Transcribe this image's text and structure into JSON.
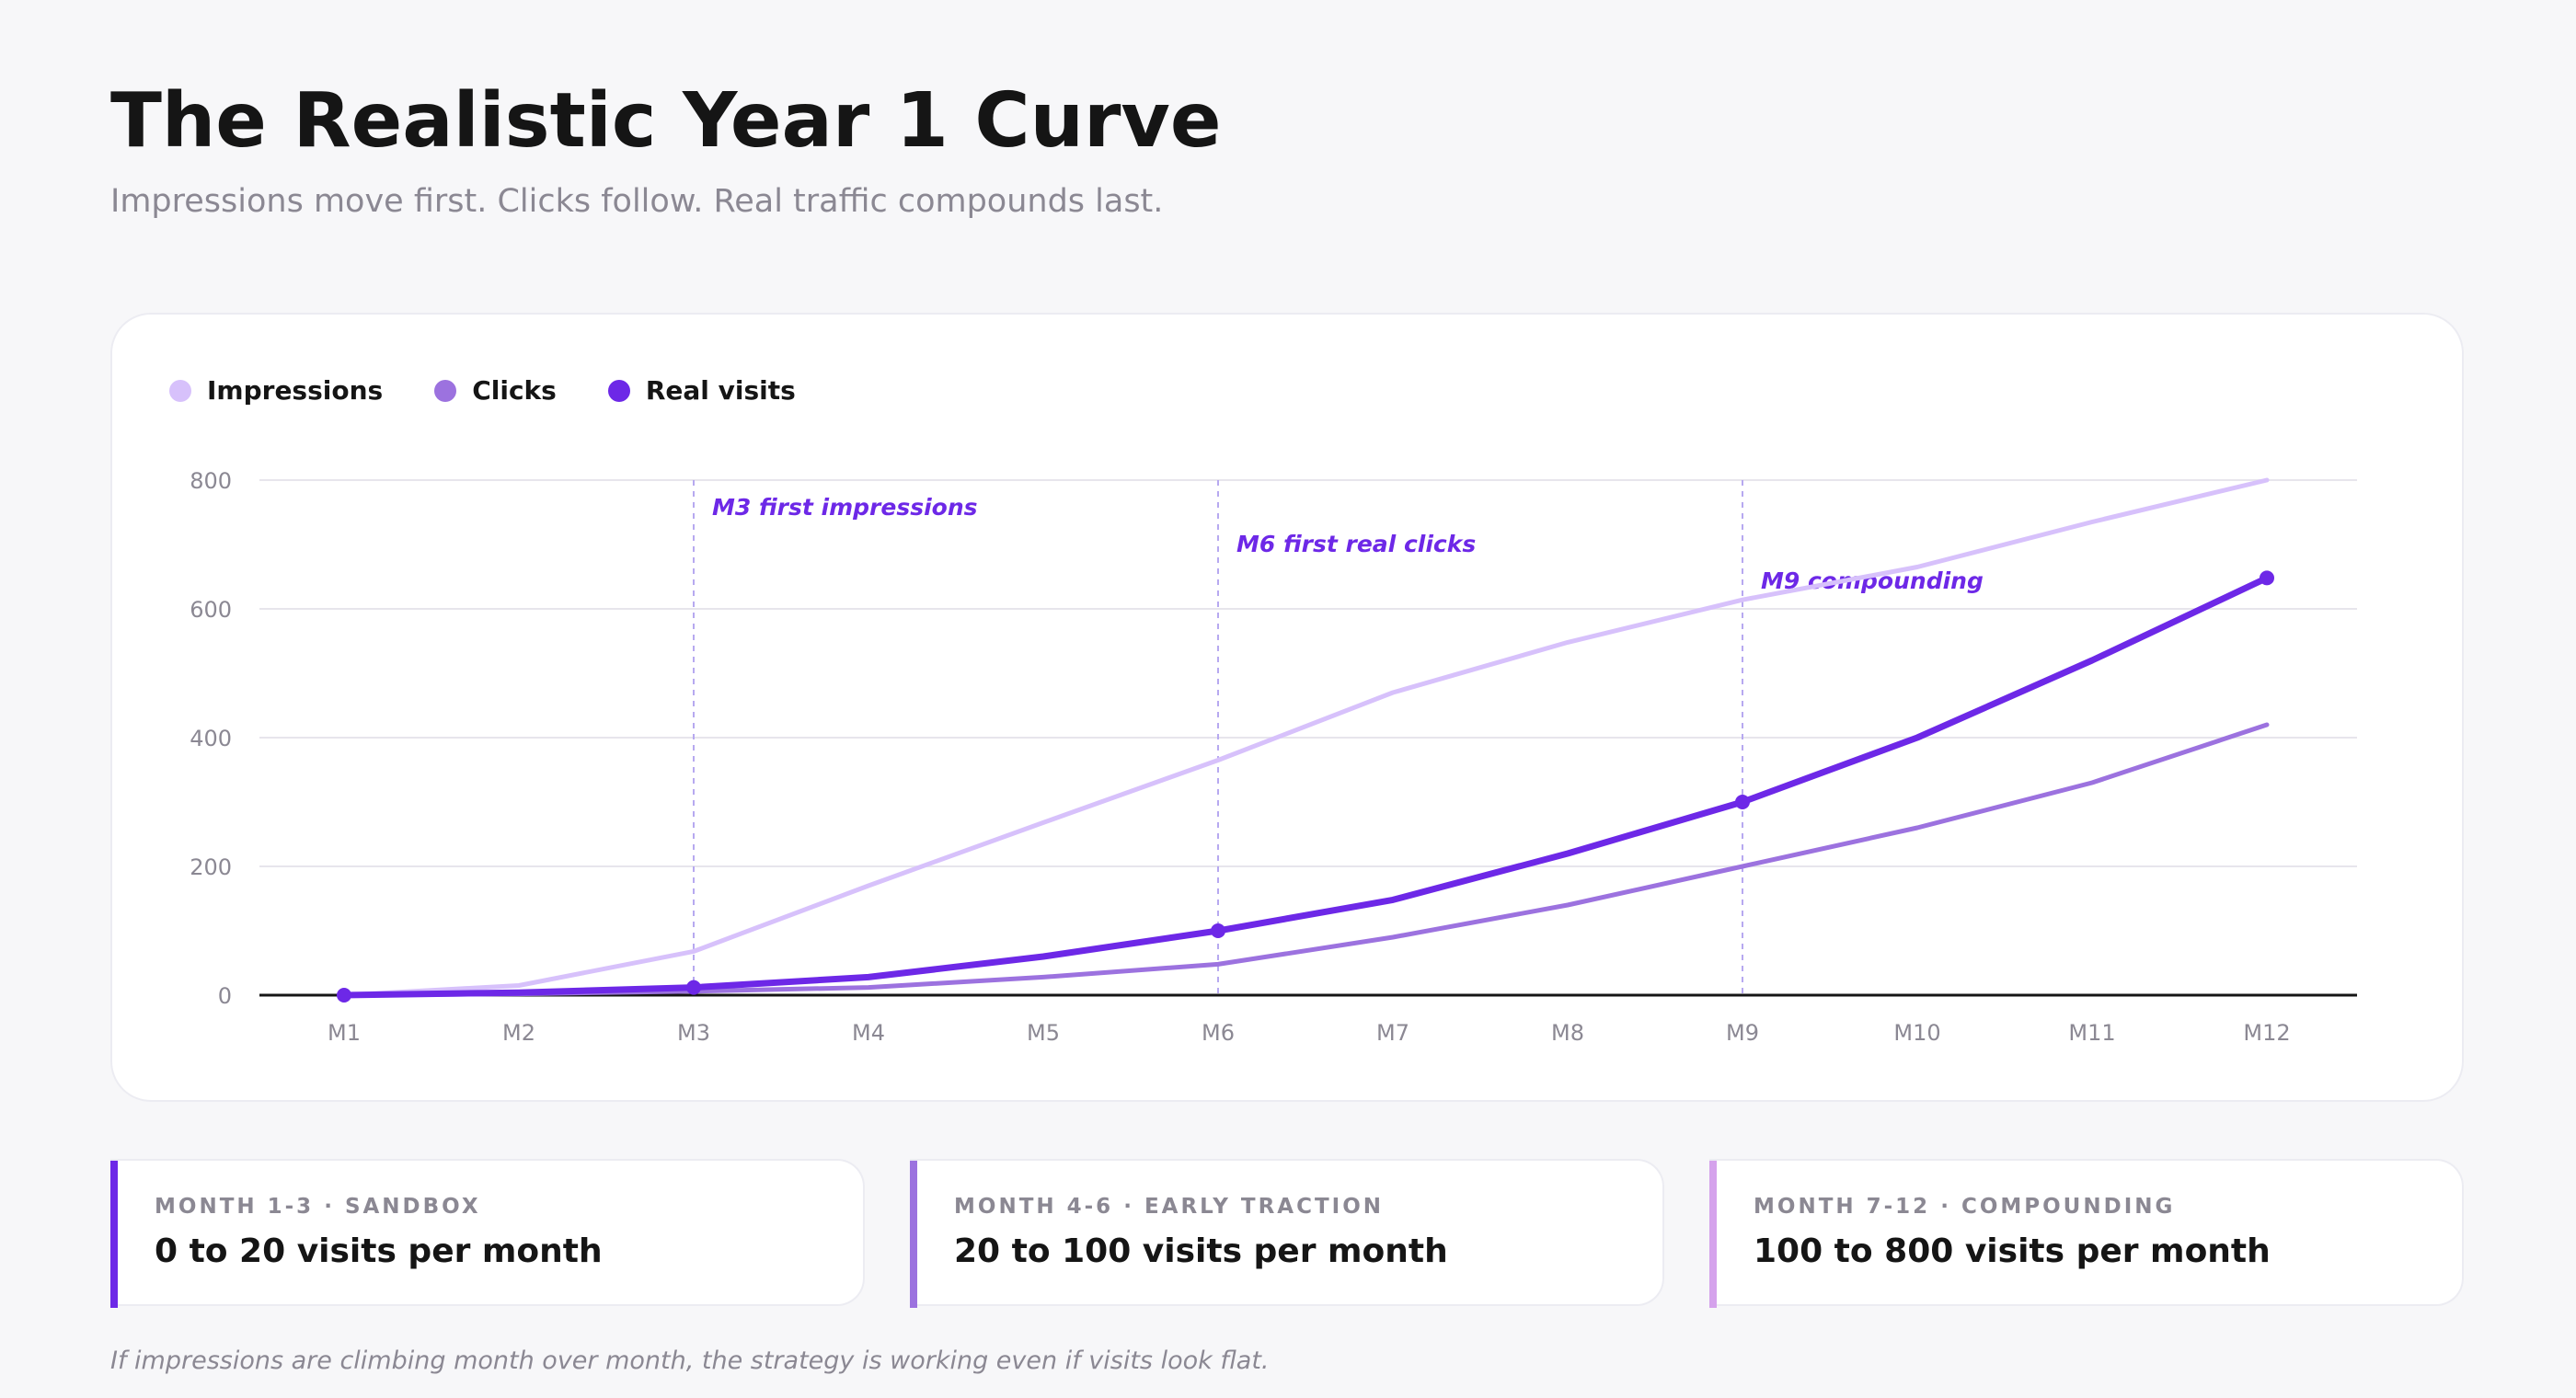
{
  "header": {
    "title": "The Realistic Year 1 Curve",
    "subtitle": "Impressions move first. Clicks follow. Real traffic compounds last."
  },
  "colors": {
    "background": "#f7f7f9",
    "card": "#ffffff",
    "text": "#151515",
    "muted": "#8b8893",
    "impressions": "#d7c1fb",
    "clicks": "#9c72df",
    "real_visits": "#6d28e7",
    "third_phase": "#d5a2ec",
    "annotation_line": "#b7a9f0"
  },
  "chart_data": {
    "type": "line",
    "categories": [
      "M1",
      "M2",
      "M3",
      "M4",
      "M5",
      "M6",
      "M7",
      "M8",
      "M9",
      "M10",
      "M11",
      "M12"
    ],
    "series": [
      {
        "name": "Impressions",
        "color": "#d7c1fb",
        "values": [
          0,
          15,
          68,
          170,
          268,
          365,
          470,
          548,
          614,
          665,
          735,
          800
        ]
      },
      {
        "name": "Clicks",
        "color": "#9c72df",
        "values": [
          0,
          2,
          6,
          12,
          28,
          48,
          90,
          140,
          200,
          260,
          330,
          420
        ]
      },
      {
        "name": "Real visits",
        "color": "#6d28e7",
        "values": [
          0,
          4,
          12,
          28,
          60,
          100,
          148,
          220,
          300,
          400,
          520,
          648
        ],
        "marked_points": [
          "M1",
          "M3",
          "M6",
          "M9",
          "M12"
        ]
      }
    ],
    "ylim": [
      0,
      800
    ],
    "y_ticks": [
      0,
      200,
      400,
      600,
      800
    ],
    "xlabel": "",
    "ylabel": "",
    "grid": true,
    "legend": "top-left",
    "annotations": [
      {
        "x": "M3",
        "label": "M3 first impressions"
      },
      {
        "x": "M6",
        "label": "M6 first real clicks"
      },
      {
        "x": "M9",
        "label": "M9 compounding"
      }
    ]
  },
  "phases": [
    {
      "kicker": "MONTH 1-3 · SANDBOX",
      "value": "0 to 20 visits per month",
      "color": "#6d28e7"
    },
    {
      "kicker": "MONTH 4-6 · EARLY TRACTION",
      "value": "20 to 100 visits per month",
      "color": "#9c72df"
    },
    {
      "kicker": "MONTH 7-12 · COMPOUNDING",
      "value": "100 to 800 visits per month",
      "color": "#d5a2ec"
    }
  ],
  "footer": {
    "note": "If impressions are climbing month over month, the strategy is working even if visits look flat."
  }
}
